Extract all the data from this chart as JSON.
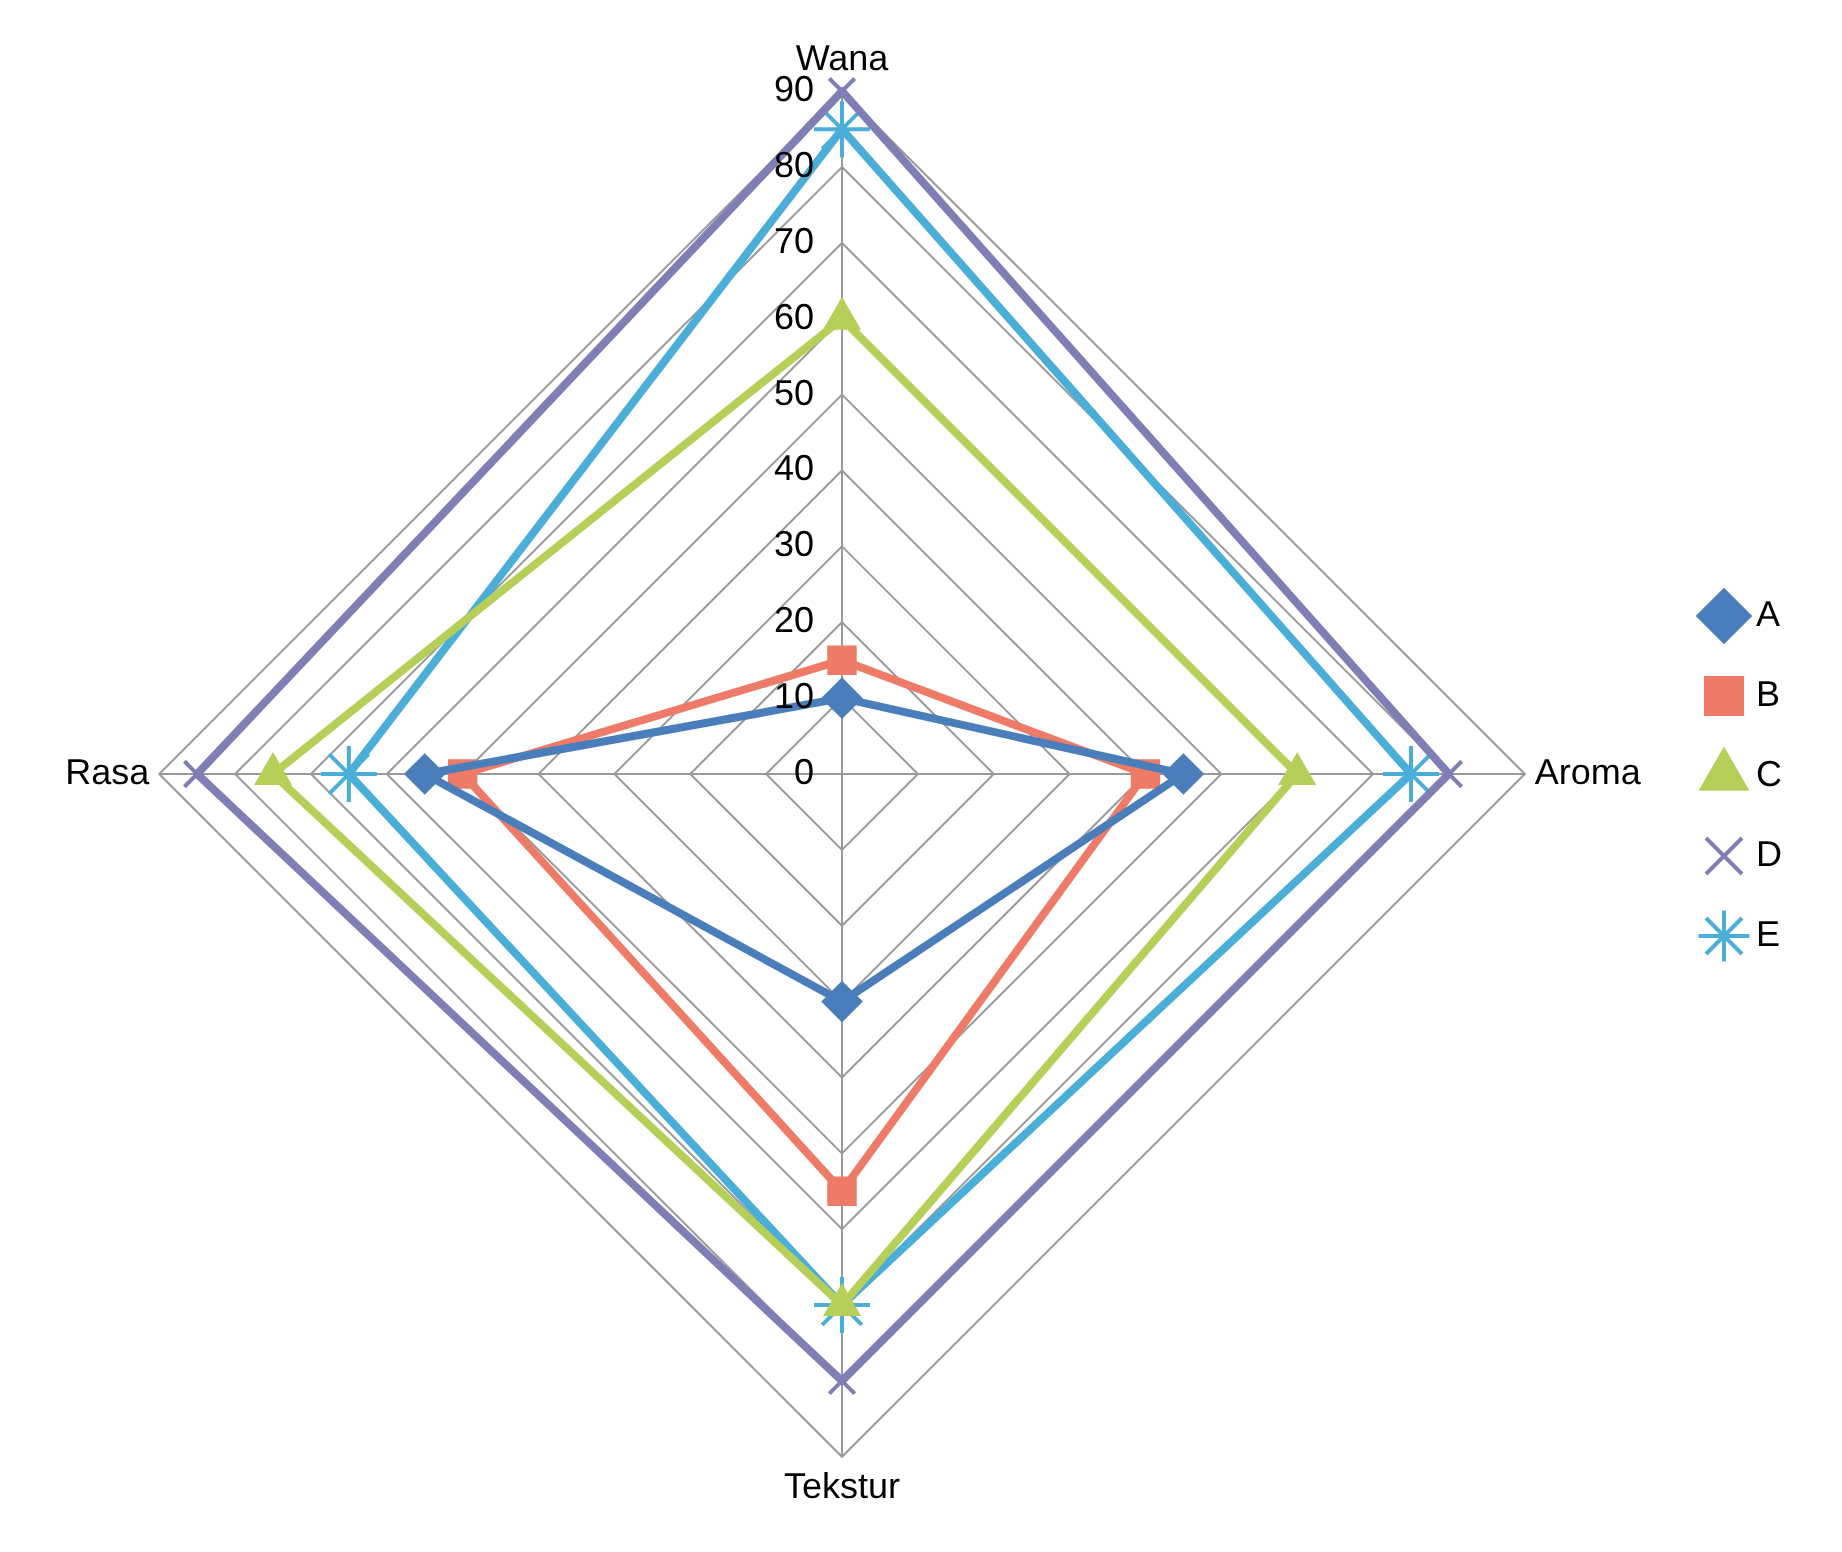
{
  "chart_data": {
    "type": "radar",
    "categories": [
      "Wana",
      "Aroma",
      "Tekstur",
      "Rasa"
    ],
    "ylim": [
      0,
      90
    ],
    "yticks": [
      0,
      10,
      20,
      30,
      40,
      50,
      60,
      70,
      80,
      90
    ],
    "grid": true,
    "legend": "right",
    "series": [
      {
        "name": "A",
        "color": "#4a7ebb",
        "marker": "diamond",
        "values": [
          10,
          45,
          30,
          55
        ]
      },
      {
        "name": "B",
        "color": "#ee7b67",
        "marker": "square",
        "values": [
          15,
          40,
          55,
          50
        ]
      },
      {
        "name": "C",
        "color": "#b5cf58",
        "marker": "triangle",
        "values": [
          60,
          60,
          70,
          75
        ]
      },
      {
        "name": "D",
        "color": "#7f7fb5",
        "marker": "cross",
        "values": [
          90,
          80,
          80,
          85
        ]
      },
      {
        "name": "E",
        "color": "#4aaed8",
        "marker": "star",
        "values": [
          85,
          75,
          70,
          65
        ]
      }
    ]
  }
}
